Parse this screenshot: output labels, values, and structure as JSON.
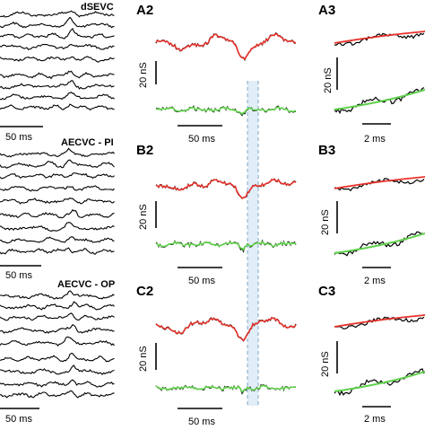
{
  "panels": {
    "a2": "A2",
    "a3": "A3",
    "b2": "B2",
    "b3": "B3",
    "c2": "C2",
    "c3": "C3"
  },
  "conditions": {
    "a": "dSEVC",
    "b": "AECVC - PI",
    "c": "AECVC - OP"
  },
  "scale_bars": {
    "time_long": "50 ms",
    "time_short": "2 ms",
    "conductance": "20 nS"
  },
  "colors": {
    "raw_trace": "#000000",
    "excitatory_fit": "#e8312a",
    "inhibitory_fit": "#5fd14a",
    "highlight_band": "#c9dff0",
    "highlight_edge": "#7fa8c8"
  }
}
